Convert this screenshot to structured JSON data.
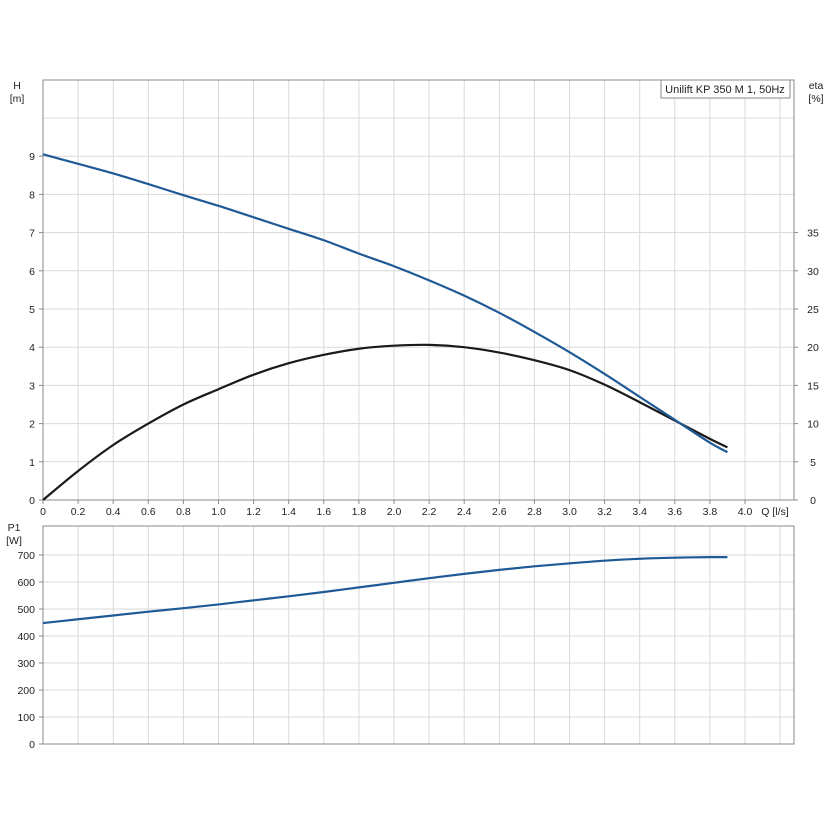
{
  "title": "Unilift KP 350 M 1, 50Hz",
  "colors": {
    "head_curve": "#1f5a96",
    "eta_curve": "#1a1a1a",
    "p1_curve": "#1f5a96",
    "grid": "#d9d9d9",
    "frame": "#8a8a8a"
  },
  "chart_data": [
    {
      "type": "line",
      "title": "Unilift KP 350 M 1, 50Hz",
      "xlabel": "Q [l/s]",
      "ylabel": "H [m]",
      "y2label": "eta [%]",
      "xlim": [
        0,
        4.3
      ],
      "ylim": [
        0,
        10
      ],
      "y2lim": [
        0,
        50
      ],
      "x_ticks": [
        0,
        0.2,
        0.4,
        0.6,
        0.8,
        1.0,
        1.2,
        1.4,
        1.6,
        1.8,
        2.0,
        2.2,
        2.4,
        2.6,
        2.8,
        3.0,
        3.2,
        3.4,
        3.6,
        3.8,
        4.0
      ],
      "x_tick_labels": [
        "0",
        "0.2",
        "0.4",
        "0.6",
        "0.8",
        "1.0",
        "1.2",
        "1.4",
        "1.6",
        "1.8",
        "2.0",
        "2.2",
        "2.4",
        "2.6",
        "2.8",
        "3.0",
        "3.2",
        "3.4",
        "3.6",
        "3.8",
        "4.0"
      ],
      "y_ticks": [
        0,
        1,
        2,
        3,
        4,
        5,
        6,
        7,
        8,
        9
      ],
      "y2_ticks": [
        0,
        5,
        10,
        15,
        20,
        25,
        30,
        35
      ],
      "grid": true,
      "legend_position": "top-right",
      "series": [
        {
          "name": "H",
          "axis": "left",
          "x": [
            0,
            0.2,
            0.4,
            0.6,
            0.8,
            1.0,
            1.2,
            1.4,
            1.6,
            1.8,
            2.0,
            2.2,
            2.4,
            2.6,
            2.8,
            3.0,
            3.2,
            3.4,
            3.6,
            3.8,
            3.9
          ],
          "values": [
            9.05,
            8.8,
            8.55,
            8.27,
            7.98,
            7.7,
            7.4,
            7.1,
            6.8,
            6.45,
            6.12,
            5.75,
            5.35,
            4.9,
            4.4,
            3.87,
            3.3,
            2.7,
            2.1,
            1.5,
            1.25
          ]
        },
        {
          "name": "eta",
          "axis": "right",
          "x": [
            0,
            0.2,
            0.4,
            0.6,
            0.8,
            1.0,
            1.2,
            1.4,
            1.6,
            1.8,
            2.0,
            2.2,
            2.4,
            2.6,
            2.8,
            3.0,
            3.2,
            3.4,
            3.6,
            3.8,
            3.9
          ],
          "values": [
            0,
            3.8,
            7.2,
            10.0,
            12.5,
            14.5,
            16.4,
            17.9,
            19.0,
            19.8,
            20.2,
            20.3,
            20.0,
            19.3,
            18.3,
            17.0,
            15.1,
            12.8,
            10.4,
            8.0,
            6.9
          ]
        }
      ]
    },
    {
      "type": "line",
      "xlabel": "",
      "ylabel": "P1 [W]",
      "xlim": [
        0,
        4.3
      ],
      "ylim": [
        0,
        800
      ],
      "y_ticks": [
        0,
        100,
        200,
        300,
        400,
        500,
        600,
        700
      ],
      "grid": true,
      "series": [
        {
          "name": "P1",
          "axis": "left",
          "x": [
            0,
            0.2,
            0.4,
            0.6,
            0.8,
            1.0,
            1.2,
            1.4,
            1.6,
            1.8,
            2.0,
            2.2,
            2.4,
            2.6,
            2.8,
            3.0,
            3.2,
            3.4,
            3.6,
            3.8,
            3.9
          ],
          "values": [
            448,
            462,
            476,
            490,
            503,
            517,
            532,
            547,
            563,
            580,
            597,
            614,
            630,
            645,
            658,
            669,
            679,
            686,
            690,
            692,
            692
          ]
        }
      ]
    }
  ]
}
